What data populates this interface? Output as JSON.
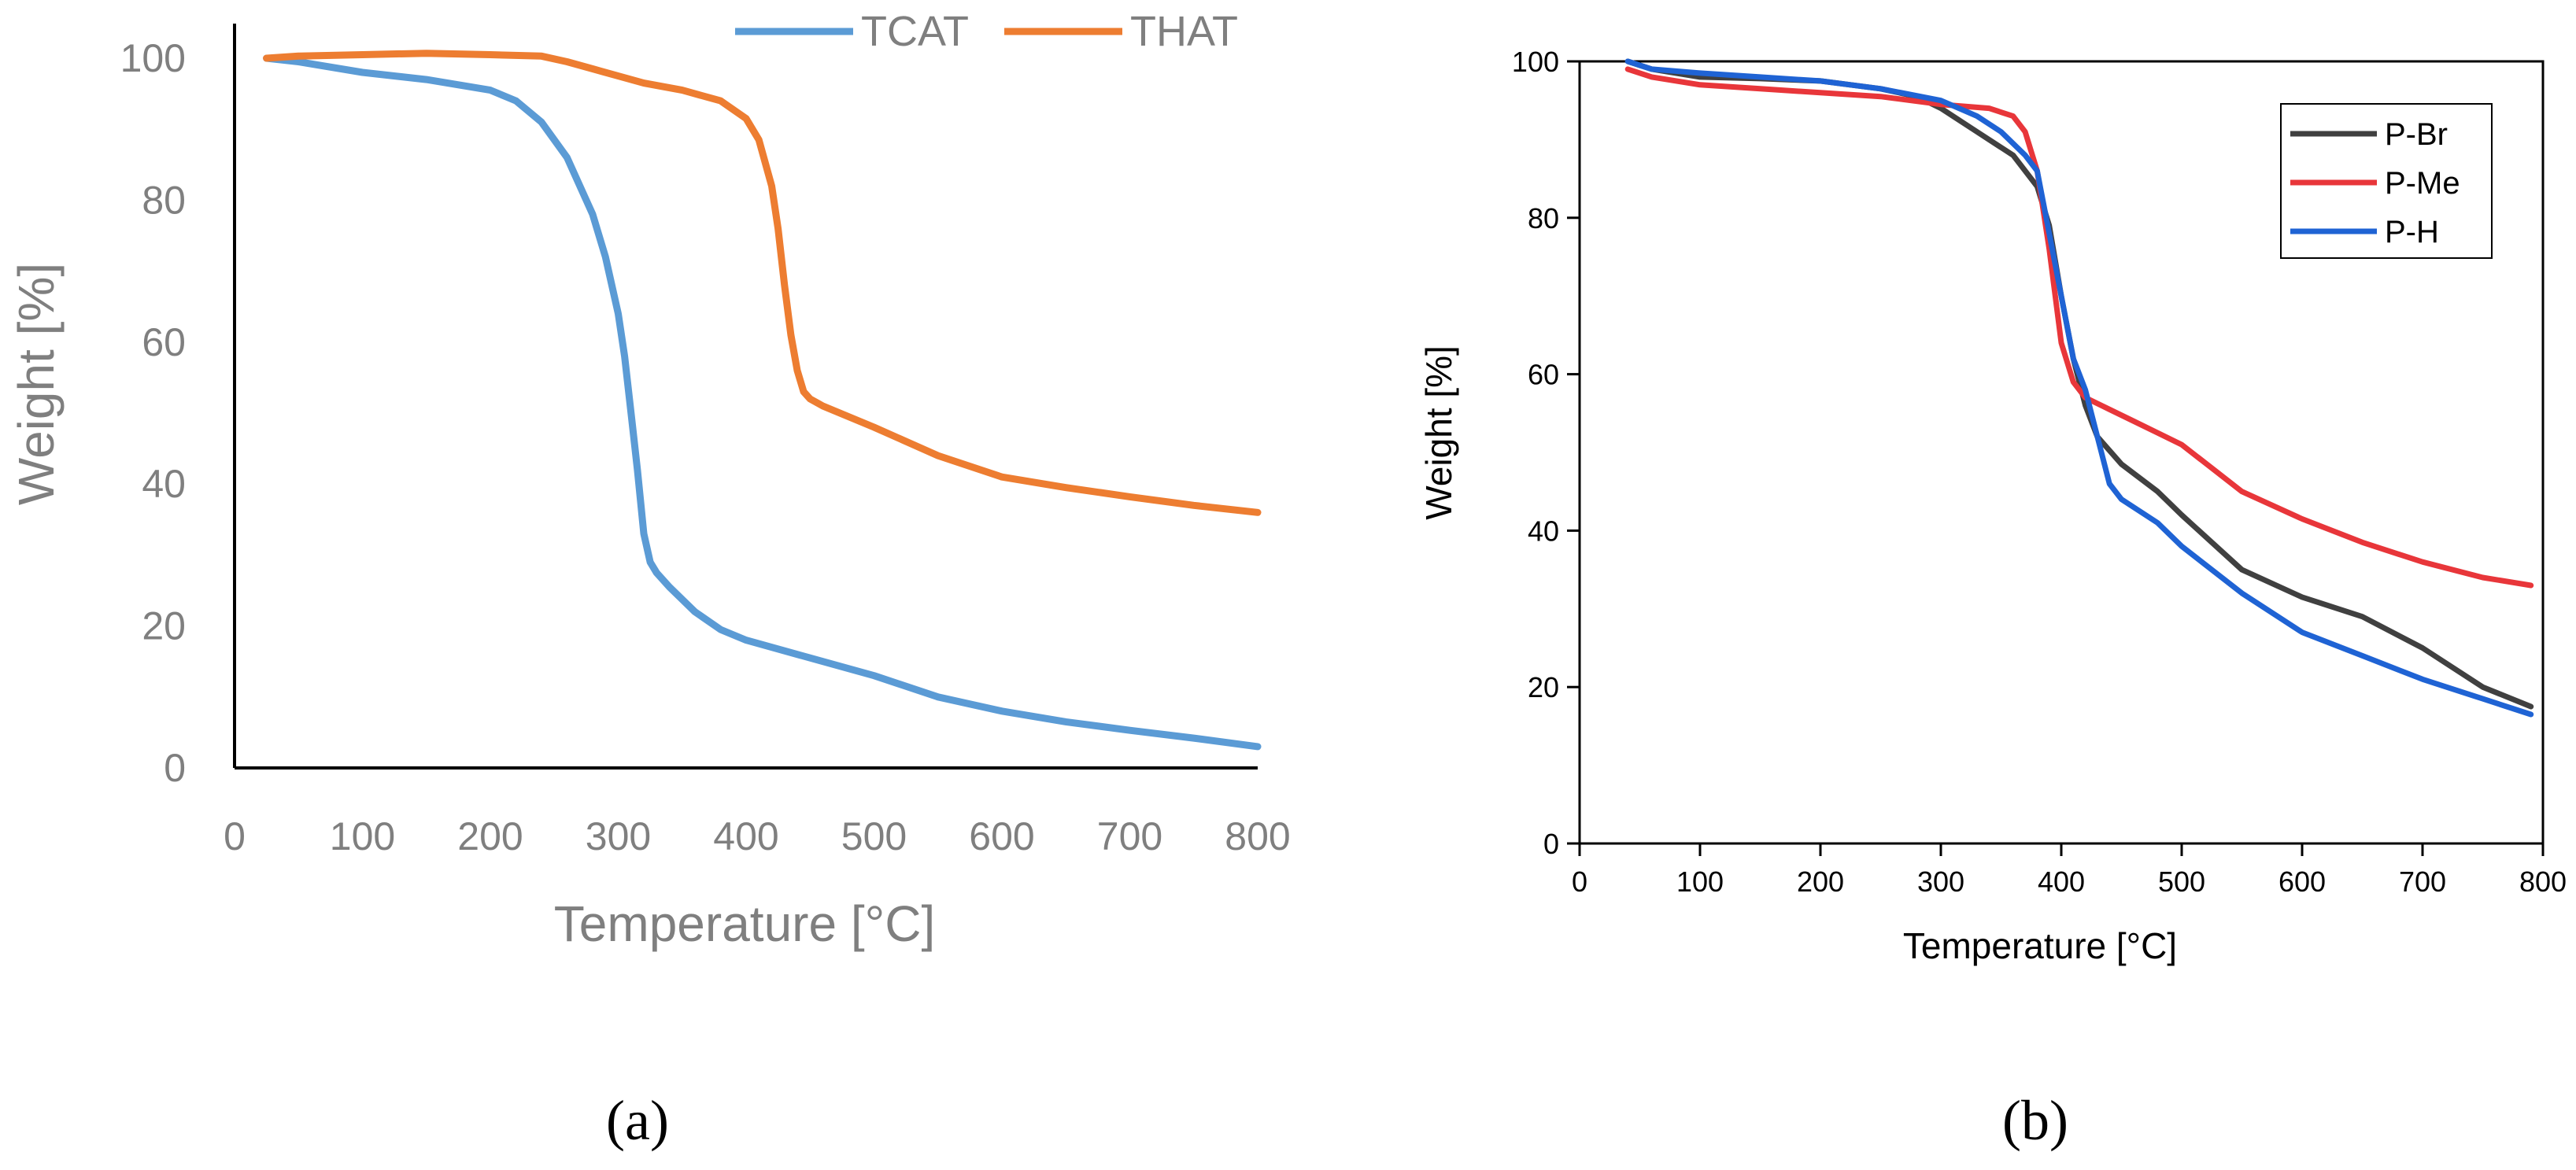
{
  "chart_data": [
    {
      "type": "line",
      "panel_label": "(a)",
      "title": "",
      "xlabel": "Temperature [°C]",
      "ylabel": "Weight [%]",
      "xlim": [
        0,
        800
      ],
      "ylim": [
        0,
        100
      ],
      "xticks": [
        "0",
        "100",
        "200",
        "300",
        "400",
        "500",
        "600",
        "700",
        "800"
      ],
      "yticks": [
        "0",
        "20",
        "40",
        "60",
        "80",
        "100"
      ],
      "grid": false,
      "legend_position": "top",
      "colors": [
        "#5b9bd5",
        "#ed7d31"
      ],
      "series": [
        {
          "name": "TCAT",
          "x": [
            25,
            50,
            100,
            150,
            200,
            220,
            240,
            260,
            280,
            290,
            300,
            305,
            310,
            315,
            320,
            325,
            330,
            340,
            360,
            380,
            400,
            450,
            480,
            500,
            550,
            600,
            650,
            700,
            750,
            800
          ],
          "y": [
            100,
            99.5,
            98,
            97,
            95.5,
            94,
            91,
            86,
            78,
            72,
            64,
            58,
            50,
            42,
            33,
            29,
            27.5,
            25.5,
            22,
            19.5,
            18,
            15.5,
            14,
            13,
            10,
            8,
            6.5,
            5.3,
            4.2,
            3
          ]
        },
        {
          "name": "THAT",
          "x": [
            25,
            50,
            100,
            150,
            200,
            240,
            260,
            280,
            300,
            320,
            350,
            380,
            400,
            410,
            420,
            425,
            430,
            435,
            440,
            445,
            450,
            460,
            480,
            500,
            550,
            600,
            650,
            700,
            750,
            800
          ],
          "y": [
            100,
            100.3,
            100.5,
            100.7,
            100.5,
            100.3,
            99.5,
            98.5,
            97.5,
            96.5,
            95.5,
            94,
            91.5,
            88.5,
            82,
            76,
            68,
            61,
            56,
            53,
            52,
            51,
            49.5,
            48,
            44,
            41,
            39.5,
            38.2,
            37,
            36
          ]
        }
      ]
    },
    {
      "type": "line",
      "panel_label": "(b)",
      "title": "",
      "xlabel": "Temperature [°C]",
      "ylabel": "Weight [%]",
      "xlim": [
        0,
        800
      ],
      "ylim": [
        0,
        100
      ],
      "xticks": [
        "0",
        "100",
        "200",
        "300",
        "400",
        "500",
        "600",
        "700",
        "800"
      ],
      "yticks": [
        "0",
        "20",
        "40",
        "60",
        "80",
        "100"
      ],
      "grid": false,
      "legend_position": "top-right",
      "colors": [
        "#404040",
        "#e8363a",
        "#1f63d4"
      ],
      "series": [
        {
          "name": "P-Br",
          "x": [
            40,
            60,
            100,
            150,
            200,
            250,
            280,
            300,
            330,
            360,
            380,
            390,
            400,
            410,
            420,
            430,
            450,
            480,
            500,
            550,
            600,
            650,
            700,
            750,
            790
          ],
          "y": [
            100,
            99,
            98,
            97.8,
            97.5,
            96.5,
            95.5,
            94,
            91,
            88,
            84,
            79,
            70,
            62,
            56,
            52,
            48.5,
            45,
            42,
            35,
            31.5,
            29,
            25,
            20,
            17.5
          ]
        },
        {
          "name": "P-Me",
          "x": [
            40,
            60,
            100,
            150,
            200,
            250,
            300,
            340,
            360,
            370,
            380,
            390,
            400,
            410,
            420,
            440,
            460,
            480,
            500,
            550,
            600,
            650,
            700,
            750,
            790
          ],
          "y": [
            99,
            98,
            97,
            96.5,
            96,
            95.5,
            94.5,
            94,
            93,
            91,
            86,
            76,
            64,
            59,
            57,
            55.5,
            54,
            52.5,
            51,
            45,
            41.5,
            38.5,
            36,
            34,
            33
          ]
        },
        {
          "name": "P-H",
          "x": [
            40,
            60,
            100,
            150,
            200,
            250,
            300,
            330,
            350,
            370,
            380,
            390,
            400,
            410,
            420,
            430,
            440,
            450,
            480,
            500,
            550,
            600,
            650,
            700,
            750,
            790
          ],
          "y": [
            100,
            99,
            98.5,
            98,
            97.5,
            96.5,
            95,
            93,
            91,
            88,
            86,
            78,
            70,
            62,
            58,
            52,
            46,
            44,
            41,
            38,
            32,
            27,
            24,
            21,
            18.5,
            16.5
          ]
        }
      ]
    }
  ]
}
